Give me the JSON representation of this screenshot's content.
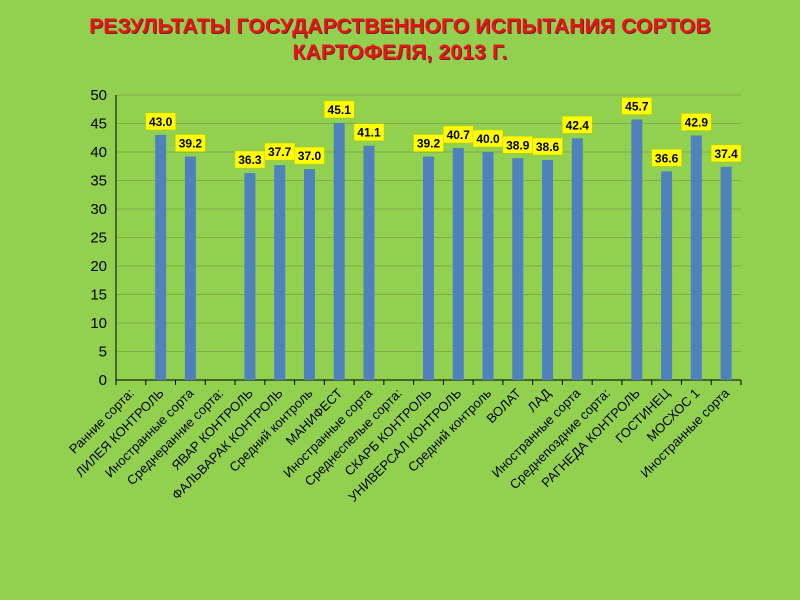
{
  "title_lines": [
    "РЕЗУЛЬТАТЫ ГОСУДАРСТВЕННОГО ИСПЫТАНИЯ СОРТОВ",
    "КАРТОФЕЛЯ, 2013 Г."
  ],
  "colors": {
    "background": "#92d050",
    "bar": "#4f81bd",
    "title": "#e8141b",
    "label_fill": "#ffff00",
    "grid": "#7fae47"
  },
  "chart_data": {
    "type": "bar",
    "title": "РЕЗУЛЬТАТЫ ГОСУДАРСТВЕННОГО ИСПЫТАНИЯ СОРТОВ КАРТОФЕЛЯ, 2013 Г.",
    "xlabel": "",
    "ylabel": "",
    "ylim": [
      0,
      50
    ],
    "yticks": [
      "0",
      "5",
      "10",
      "15",
      "20",
      "25",
      "30",
      "35",
      "40",
      "45",
      "50"
    ],
    "grid": true,
    "legend": "none",
    "categories": [
      "Ранние сорта:",
      "ЛИЛЕЯ КОНТРОЛЬ",
      "Иностранные сорта",
      "Среднеранние сорта:",
      "ЯВАР КОНТРОЛЬ",
      "ФАЛЬВАРАК КОНТРОЛЬ",
      "Средний контроль",
      "МАНИФЕСТ",
      "Иностранные сорта",
      "Среднеспелые сорта:",
      "СКАРБ КОНТРОЛЬ",
      "УНИВЕРСАЛ КОНТРОЛЬ",
      "Средний контроль",
      "ВОЛАТ",
      "ЛАД",
      "Иностранные сорта",
      "Среднепоздние сорта:",
      "РАГНЕДА КОНТРОЛЬ",
      "ГОСТИНЕЦ",
      "МОСХОС 1",
      "Иностранные сорта"
    ],
    "values": [
      null,
      43.0,
      39.2,
      null,
      36.3,
      37.7,
      37.0,
      45.1,
      41.1,
      null,
      39.2,
      40.7,
      40.0,
      38.9,
      38.6,
      42.4,
      null,
      45.7,
      36.6,
      42.9,
      37.4
    ],
    "data_labels": [
      "",
      "43.0",
      "39.2",
      "",
      "36.3",
      "37.7",
      "37.0",
      "45.1",
      "41.1",
      "",
      "39.2",
      "40.7",
      "40.0",
      "38.9",
      "38.6",
      "42.4",
      "",
      "45.7",
      "36.6",
      "42.9",
      "37.4"
    ]
  }
}
